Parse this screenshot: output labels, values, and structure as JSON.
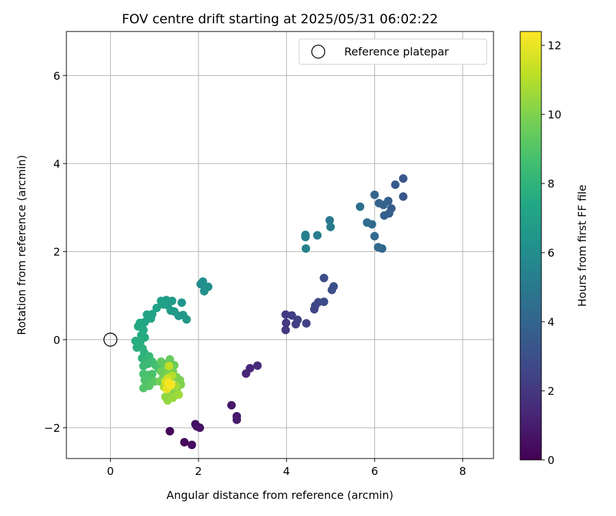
{
  "chart_data": {
    "type": "scatter",
    "title": "FOV centre drift starting at 2025/05/31 06:02:22",
    "xlabel": "Angular distance from reference (arcmin)",
    "ylabel": "Rotation from reference (arcmin)",
    "xlim": [
      -1,
      8.7
    ],
    "ylim": [
      -2.7,
      7.0
    ],
    "xticks": [
      0,
      2,
      4,
      6,
      8
    ],
    "yticks": [
      -2,
      0,
      2,
      4,
      6
    ],
    "grid": true,
    "legend": {
      "placement": "top-right",
      "entries": [
        "Reference platepar"
      ]
    },
    "reference_point": {
      "x": 0,
      "y": 0
    },
    "colorbar": {
      "label": "Hours from first FF file",
      "min": 0,
      "max": 12.4,
      "ticks": [
        0,
        2,
        4,
        6,
        8,
        10,
        12
      ],
      "colormap": "viridis"
    },
    "points": [
      {
        "x": 1.35,
        "y": -2.08,
        "c": 0.2
      },
      {
        "x": 1.68,
        "y": -2.33,
        "c": 0.3
      },
      {
        "x": 1.85,
        "y": -2.39,
        "c": 0.4
      },
      {
        "x": 1.93,
        "y": -1.92,
        "c": 0.5
      },
      {
        "x": 1.96,
        "y": -1.97,
        "c": 0.55
      },
      {
        "x": 2.03,
        "y": -2.0,
        "c": 0.6
      },
      {
        "x": 2.75,
        "y": -1.49,
        "c": 0.8
      },
      {
        "x": 2.87,
        "y": -1.74,
        "c": 0.9
      },
      {
        "x": 2.87,
        "y": -1.82,
        "c": 0.95
      },
      {
        "x": 3.08,
        "y": -0.77,
        "c": 1.3
      },
      {
        "x": 3.17,
        "y": -0.65,
        "c": 1.4
      },
      {
        "x": 3.34,
        "y": -0.59,
        "c": 1.5
      },
      {
        "x": 3.98,
        "y": 0.22,
        "c": 2.0
      },
      {
        "x": 3.99,
        "y": 0.38,
        "c": 2.1
      },
      {
        "x": 3.98,
        "y": 0.57,
        "c": 2.15
      },
      {
        "x": 4.12,
        "y": 0.55,
        "c": 2.2
      },
      {
        "x": 4.21,
        "y": 0.35,
        "c": 2.3
      },
      {
        "x": 4.25,
        "y": 0.45,
        "c": 2.35
      },
      {
        "x": 4.45,
        "y": 0.37,
        "c": 2.45
      },
      {
        "x": 4.63,
        "y": 0.69,
        "c": 2.55
      },
      {
        "x": 4.65,
        "y": 0.77,
        "c": 2.6
      },
      {
        "x": 4.72,
        "y": 0.85,
        "c": 2.7
      },
      {
        "x": 4.85,
        "y": 0.86,
        "c": 2.8
      },
      {
        "x": 4.85,
        "y": 1.4,
        "c": 2.9
      },
      {
        "x": 5.03,
        "y": 1.13,
        "c": 3.0
      },
      {
        "x": 5.07,
        "y": 1.21,
        "c": 3.05
      },
      {
        "x": 6.65,
        "y": 3.66,
        "c": 3.3
      },
      {
        "x": 6.65,
        "y": 3.25,
        "c": 3.4
      },
      {
        "x": 6.47,
        "y": 3.52,
        "c": 3.5
      },
      {
        "x": 6.38,
        "y": 2.98,
        "c": 3.6
      },
      {
        "x": 6.33,
        "y": 2.87,
        "c": 3.7
      },
      {
        "x": 6.31,
        "y": 3.15,
        "c": 3.75
      },
      {
        "x": 6.22,
        "y": 2.82,
        "c": 3.8
      },
      {
        "x": 6.2,
        "y": 3.06,
        "c": 3.85
      },
      {
        "x": 6.1,
        "y": 3.1,
        "c": 3.9
      },
      {
        "x": 6.0,
        "y": 3.29,
        "c": 4.0
      },
      {
        "x": 6.17,
        "y": 2.07,
        "c": 4.1
      },
      {
        "x": 6.08,
        "y": 2.1,
        "c": 4.15
      },
      {
        "x": 6.0,
        "y": 2.35,
        "c": 4.2
      },
      {
        "x": 5.94,
        "y": 2.62,
        "c": 4.3
      },
      {
        "x": 5.83,
        "y": 2.66,
        "c": 4.4
      },
      {
        "x": 5.67,
        "y": 3.02,
        "c": 4.5
      },
      {
        "x": 4.98,
        "y": 2.71,
        "c": 5.0
      },
      {
        "x": 5.0,
        "y": 2.56,
        "c": 5.1
      },
      {
        "x": 4.7,
        "y": 2.37,
        "c": 5.2
      },
      {
        "x": 4.43,
        "y": 2.38,
        "c": 5.3
      },
      {
        "x": 4.43,
        "y": 2.33,
        "c": 5.35
      },
      {
        "x": 4.44,
        "y": 2.07,
        "c": 5.4
      },
      {
        "x": 2.05,
        "y": 1.26,
        "c": 6.0
      },
      {
        "x": 2.1,
        "y": 1.32,
        "c": 6.05
      },
      {
        "x": 2.13,
        "y": 1.1,
        "c": 6.1
      },
      {
        "x": 2.22,
        "y": 1.2,
        "c": 6.15
      },
      {
        "x": 1.62,
        "y": 0.84,
        "c": 6.4
      },
      {
        "x": 1.65,
        "y": 0.56,
        "c": 6.5
      },
      {
        "x": 1.73,
        "y": 0.46,
        "c": 6.55
      },
      {
        "x": 1.55,
        "y": 0.54,
        "c": 6.6
      },
      {
        "x": 1.45,
        "y": 0.64,
        "c": 6.7
      },
      {
        "x": 1.37,
        "y": 0.66,
        "c": 6.75
      },
      {
        "x": 1.4,
        "y": 0.88,
        "c": 6.8
      },
      {
        "x": 1.3,
        "y": 0.78,
        "c": 6.85
      },
      {
        "x": 1.27,
        "y": 0.9,
        "c": 6.9
      },
      {
        "x": 1.2,
        "y": 0.8,
        "c": 6.95
      },
      {
        "x": 1.15,
        "y": 0.88,
        "c": 7.0
      },
      {
        "x": 1.05,
        "y": 0.72,
        "c": 7.1
      },
      {
        "x": 0.95,
        "y": 0.58,
        "c": 7.15
      },
      {
        "x": 0.92,
        "y": 0.48,
        "c": 7.2
      },
      {
        "x": 0.83,
        "y": 0.57,
        "c": 7.25
      },
      {
        "x": 0.78,
        "y": 0.4,
        "c": 7.3
      },
      {
        "x": 0.72,
        "y": 0.32,
        "c": 7.35
      },
      {
        "x": 0.67,
        "y": 0.38,
        "c": 7.4
      },
      {
        "x": 0.63,
        "y": 0.3,
        "c": 7.45
      },
      {
        "x": 0.75,
        "y": 0.22,
        "c": 7.5
      },
      {
        "x": 0.7,
        "y": 0.1,
        "c": 7.55
      },
      {
        "x": 0.78,
        "y": 0.05,
        "c": 7.6
      },
      {
        "x": 0.68,
        "y": -0.05,
        "c": 7.65
      },
      {
        "x": 0.57,
        "y": -0.03,
        "c": 7.7
      },
      {
        "x": 0.6,
        "y": -0.18,
        "c": 7.75
      },
      {
        "x": 0.73,
        "y": -0.2,
        "c": 7.8
      },
      {
        "x": 0.77,
        "y": -0.3,
        "c": 7.9
      },
      {
        "x": 0.72,
        "y": -0.42,
        "c": 8.0
      },
      {
        "x": 0.8,
        "y": -0.5,
        "c": 8.1
      },
      {
        "x": 0.88,
        "y": -0.38,
        "c": 8.2
      },
      {
        "x": 0.75,
        "y": -0.6,
        "c": 8.3
      },
      {
        "x": 0.85,
        "y": -0.55,
        "c": 8.4
      },
      {
        "x": 0.95,
        "y": -0.5,
        "c": 8.5
      },
      {
        "x": 1.02,
        "y": -0.58,
        "c": 8.6
      },
      {
        "x": 1.1,
        "y": -0.66,
        "c": 8.7
      },
      {
        "x": 0.75,
        "y": -0.78,
        "c": 8.75
      },
      {
        "x": 0.85,
        "y": -0.8,
        "c": 8.8
      },
      {
        "x": 0.95,
        "y": -0.78,
        "c": 8.85
      },
      {
        "x": 0.78,
        "y": -0.92,
        "c": 8.9
      },
      {
        "x": 0.88,
        "y": -0.95,
        "c": 8.95
      },
      {
        "x": 0.75,
        "y": -1.1,
        "c": 9.0
      },
      {
        "x": 0.88,
        "y": -1.05,
        "c": 9.1
      },
      {
        "x": 1.0,
        "y": -0.95,
        "c": 9.2
      },
      {
        "x": 1.15,
        "y": -0.5,
        "c": 9.3
      },
      {
        "x": 1.25,
        "y": -0.55,
        "c": 9.4
      },
      {
        "x": 1.35,
        "y": -0.45,
        "c": 9.5
      },
      {
        "x": 1.45,
        "y": -0.58,
        "c": 9.55
      },
      {
        "x": 1.15,
        "y": -0.72,
        "c": 9.6
      },
      {
        "x": 1.2,
        "y": -0.85,
        "c": 9.65
      },
      {
        "x": 1.12,
        "y": -0.95,
        "c": 9.7
      },
      {
        "x": 1.25,
        "y": -1.0,
        "c": 9.75
      },
      {
        "x": 1.3,
        "y": -0.7,
        "c": 9.8
      },
      {
        "x": 1.42,
        "y": -0.72,
        "c": 9.85
      },
      {
        "x": 1.5,
        "y": -0.85,
        "c": 9.9
      },
      {
        "x": 1.58,
        "y": -0.92,
        "c": 9.95
      },
      {
        "x": 1.6,
        "y": -1.02,
        "c": 10.0
      },
      {
        "x": 1.5,
        "y": -1.15,
        "c": 10.1
      },
      {
        "x": 1.38,
        "y": -1.2,
        "c": 10.2
      },
      {
        "x": 1.25,
        "y": -1.3,
        "c": 10.3
      },
      {
        "x": 1.3,
        "y": -1.38,
        "c": 10.4
      },
      {
        "x": 1.42,
        "y": -1.32,
        "c": 10.5
      },
      {
        "x": 1.55,
        "y": -1.25,
        "c": 10.6
      },
      {
        "x": 1.48,
        "y": -1.05,
        "c": 10.7
      },
      {
        "x": 1.35,
        "y": -0.95,
        "c": 10.8
      },
      {
        "x": 1.22,
        "y": -1.08,
        "c": 10.9
      },
      {
        "x": 1.4,
        "y": -0.82,
        "c": 11.0
      },
      {
        "x": 1.33,
        "y": -0.6,
        "c": 11.2
      },
      {
        "x": 1.3,
        "y": -0.88,
        "c": 11.4
      },
      {
        "x": 1.25,
        "y": -0.95,
        "c": 11.6
      },
      {
        "x": 1.35,
        "y": -1.05,
        "c": 11.8
      },
      {
        "x": 1.28,
        "y": -1.12,
        "c": 12.0
      },
      {
        "x": 1.32,
        "y": -0.98,
        "c": 12.2
      },
      {
        "x": 1.38,
        "y": -1.02,
        "c": 12.3
      }
    ]
  }
}
